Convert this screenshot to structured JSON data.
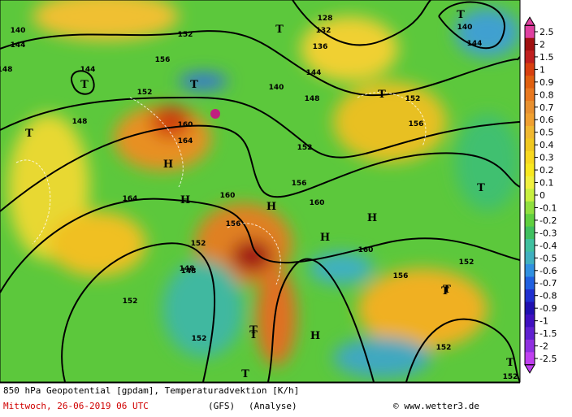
{
  "footer": {
    "title": "850 hPa Geopotential [gpdam], Temperaturadvektion [K/h]",
    "date": "Mittwoch, 26-06-2019  06 UTC",
    "model": "(GFS)",
    "run": "(Analyse)",
    "credit": "© www.wetter3.de"
  },
  "color_scale": [
    {
      "label": "2.5",
      "color": "#e040a0"
    },
    {
      "label": "2",
      "color": "#a01010"
    },
    {
      "label": "1.5",
      "color": "#c02020"
    },
    {
      "label": "1",
      "color": "#d84010"
    },
    {
      "label": "0.9",
      "color": "#e06010"
    },
    {
      "label": "0.8",
      "color": "#e87820"
    },
    {
      "label": "0.7",
      "color": "#e89030"
    },
    {
      "label": "0.6",
      "color": "#f0a030"
    },
    {
      "label": "0.5",
      "color": "#f0b830"
    },
    {
      "label": "0.4",
      "color": "#f0c820"
    },
    {
      "label": "0.3",
      "color": "#f8d820"
    },
    {
      "label": "0.2",
      "color": "#f8e820"
    },
    {
      "label": "0.1",
      "color": "#f0f040"
    },
    {
      "label": "0",
      "color": "#c8f040"
    },
    {
      "label": "-0.1",
      "color": "#90e040"
    },
    {
      "label": "-0.2",
      "color": "#60d040"
    },
    {
      "label": "-0.3",
      "color": "#40c060"
    },
    {
      "label": "-0.4",
      "color": "#40c0a0"
    },
    {
      "label": "-0.5",
      "color": "#40b0c0"
    },
    {
      "label": "-0.6",
      "color": "#3090e0"
    },
    {
      "label": "-0.7",
      "color": "#2060e0"
    },
    {
      "label": "-0.8",
      "color": "#2030d0"
    },
    {
      "label": "-0.9",
      "color": "#2010b0"
    },
    {
      "label": "-1",
      "color": "#4010c0"
    },
    {
      "label": "-1.5",
      "color": "#6020d0"
    },
    {
      "label": "-2",
      "color": "#9030e0"
    },
    {
      "label": "-2.5",
      "color": "#c040f0"
    }
  ],
  "map_labels": [
    "140",
    "144",
    "144",
    "152",
    "148",
    "156",
    "152",
    "148",
    "160",
    "164",
    "H",
    "164",
    "160",
    "156",
    "152",
    "148",
    "T",
    "160",
    "152",
    "156",
    "H",
    "H",
    "160",
    "156",
    "152",
    "T",
    "H",
    "128",
    "132",
    "136",
    "140",
    "144",
    "148",
    "152",
    "156",
    "T",
    "T",
    "148",
    "152",
    "152",
    "T",
    "T",
    "T",
    "144",
    "140",
    "T",
    "152",
    "T",
    "152"
  ],
  "weather_marks": [
    "T",
    "H",
    "T",
    "T",
    "H",
    "T"
  ]
}
